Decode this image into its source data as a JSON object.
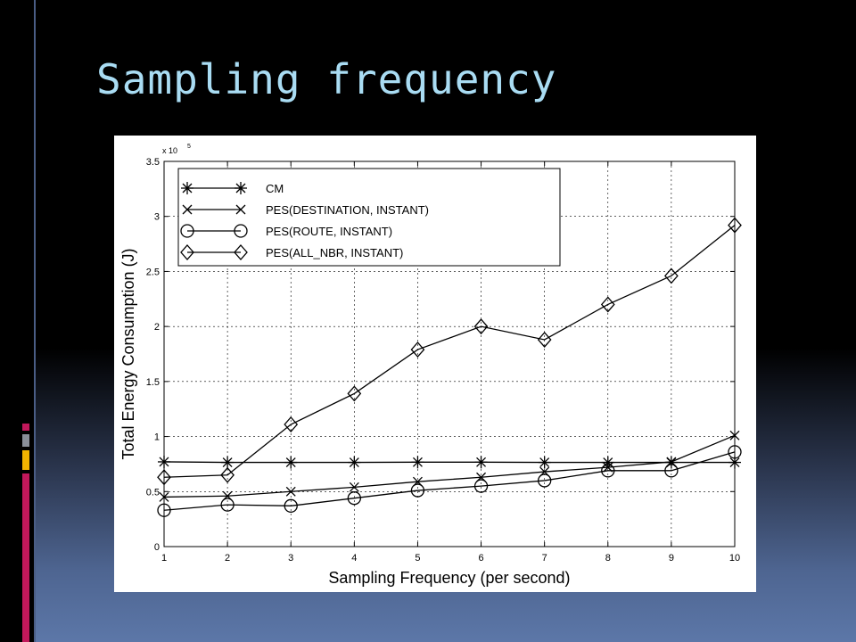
{
  "slide": {
    "title": "Sampling frequency"
  },
  "colors": {
    "title": "#a9dcf3",
    "background_top": "#000000",
    "background_bottom": "#5c77a8",
    "accent_gray": "#8a8f99",
    "accent_yellow": "#f3b400",
    "accent_pink": "#c2185b"
  },
  "chart_data": {
    "type": "line",
    "title": "",
    "xlabel": "Sampling Frequency (per second)",
    "ylabel": "Total Energy Consumption (J)",
    "y_exponent_label": "x 10",
    "y_exponent": "5",
    "x": [
      1,
      2,
      3,
      4,
      5,
      6,
      7,
      8,
      9,
      10
    ],
    "xlim": [
      1,
      10
    ],
    "ylim": [
      0,
      3.5
    ],
    "x_ticks": [
      "1",
      "2",
      "3",
      "4",
      "5",
      "6",
      "7",
      "8",
      "9",
      "10"
    ],
    "y_ticks": [
      "0",
      "0.5",
      "1",
      "1.5",
      "2",
      "2.5",
      "3",
      "3.5"
    ],
    "grid": true,
    "legend_position": "top-left",
    "series": [
      {
        "name": "CM",
        "marker": "asterisk",
        "values": [
          0.77,
          0.765,
          0.765,
          0.765,
          0.767,
          0.767,
          0.765,
          0.765,
          0.765,
          0.765
        ]
      },
      {
        "name": "PES(DESTINATION, INSTANT)",
        "marker": "x",
        "values": [
          0.45,
          0.46,
          0.5,
          0.54,
          0.59,
          0.63,
          0.68,
          0.72,
          0.77,
          1.01
        ]
      },
      {
        "name": "PES(ROUTE, INSTANT)",
        "marker": "circle",
        "values": [
          0.33,
          0.38,
          0.37,
          0.44,
          0.51,
          0.55,
          0.6,
          0.69,
          0.69,
          0.86
        ]
      },
      {
        "name": "PES(ALL_NBR, INSTANT)",
        "marker": "diamond",
        "values": [
          0.63,
          0.65,
          1.11,
          1.39,
          1.79,
          2.0,
          1.88,
          2.2,
          2.46,
          2.92
        ]
      }
    ]
  }
}
